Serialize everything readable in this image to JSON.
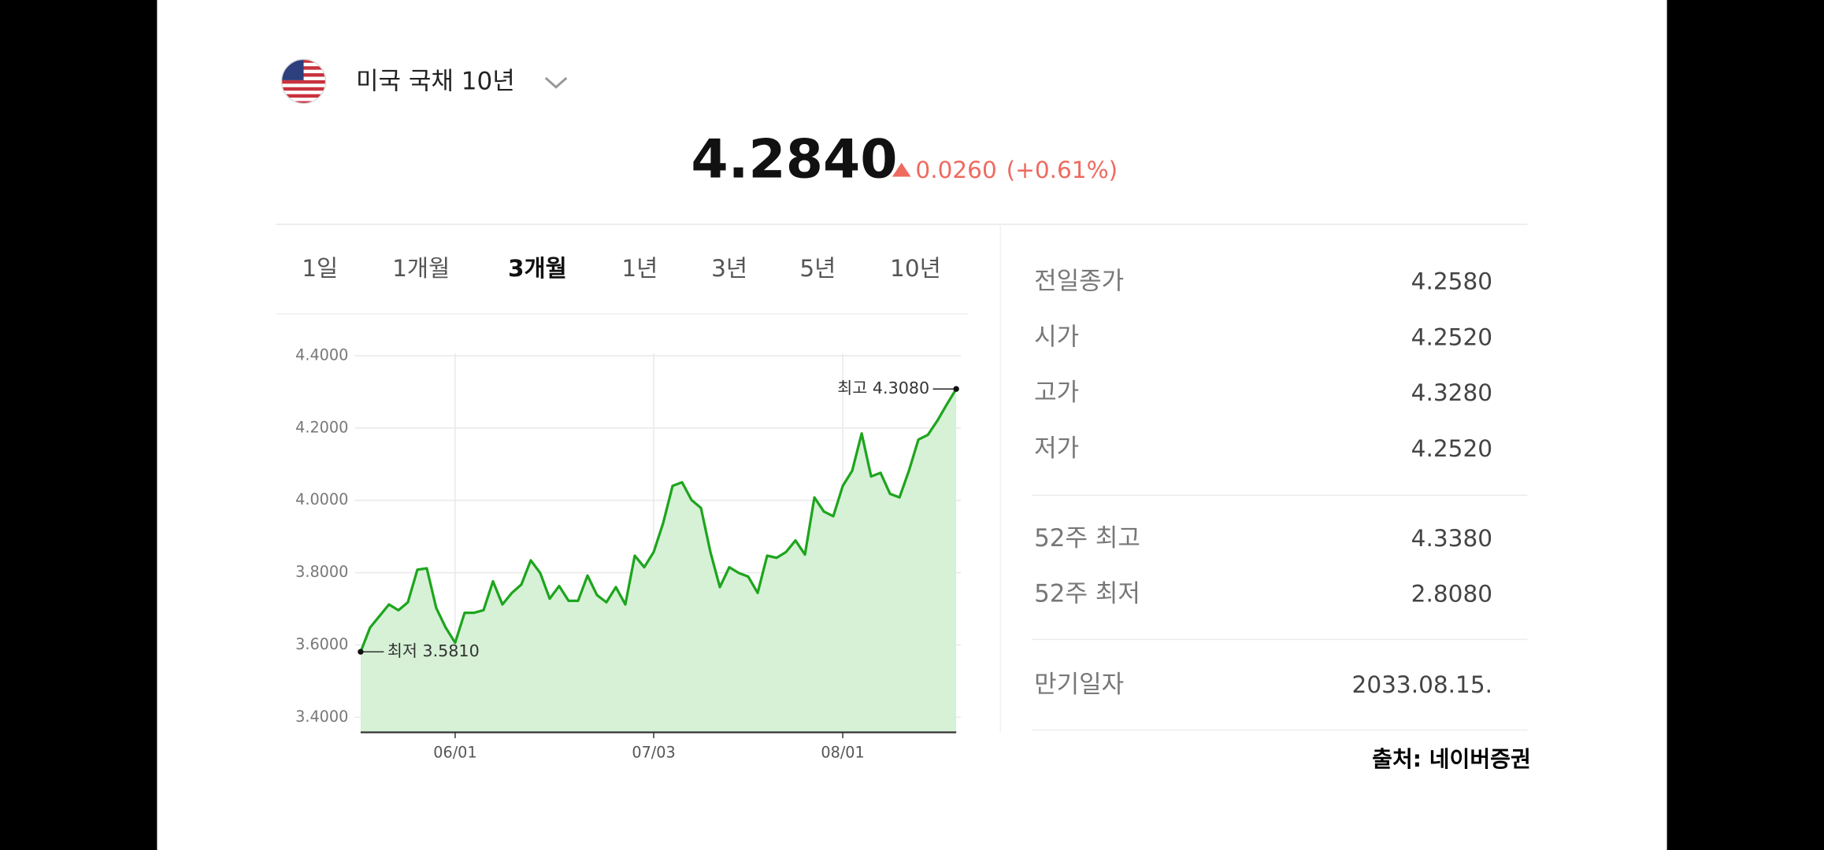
{
  "header": {
    "title": "미국 국채 10년",
    "price": "4.2840",
    "change": "0.0260",
    "change_percent": "(+0.61%)"
  },
  "tabs": {
    "items": [
      "1일",
      "1개월",
      "3개월",
      "1년",
      "3년",
      "5년",
      "10년"
    ],
    "active": "3개월"
  },
  "chart_data": {
    "type": "line",
    "color": "#1ea51e",
    "fill_color": "#d6f1d6",
    "grid": true,
    "categories": [
      null,
      null,
      null,
      null,
      null,
      null,
      null,
      null,
      null,
      null,
      "06/01",
      null,
      null,
      null,
      null,
      null,
      null,
      null,
      null,
      null,
      null,
      null,
      null,
      null,
      null,
      null,
      null,
      null,
      null,
      null,
      null,
      "07/03",
      null,
      null,
      null,
      null,
      null,
      null,
      null,
      null,
      null,
      null,
      null,
      null,
      null,
      null,
      null,
      null,
      null,
      null,
      null,
      "08/01",
      null,
      null,
      null,
      null,
      null,
      null,
      null,
      null,
      null,
      null,
      null,
      null
    ],
    "values": [
      3.581,
      3.648,
      3.68,
      3.712,
      3.696,
      3.718,
      3.808,
      3.812,
      3.702,
      3.648,
      3.606,
      3.689,
      3.689,
      3.696,
      3.776,
      3.712,
      3.744,
      3.767,
      3.834,
      3.799,
      3.728,
      3.763,
      3.722,
      3.722,
      3.792,
      3.738,
      3.718,
      3.76,
      3.712,
      3.847,
      3.815,
      3.857,
      3.937,
      4.04,
      4.05,
      4.001,
      3.979,
      3.857,
      3.76,
      3.815,
      3.799,
      3.789,
      3.744,
      3.847,
      3.841,
      3.857,
      3.889,
      3.85,
      4.008,
      3.969,
      3.956,
      4.04,
      4.082,
      4.185,
      4.066,
      4.076,
      4.018,
      4.008,
      4.082,
      4.168,
      4.181,
      4.22,
      4.265,
      4.308
    ],
    "ylim": [
      3.38,
      4.43
    ],
    "yticks": [
      {
        "value": 3.4,
        "label": "3.4000"
      },
      {
        "value": 3.6,
        "label": "3.6000"
      },
      {
        "value": 3.8,
        "label": "3.8000"
      },
      {
        "value": 4.0,
        "label": "4.0000"
      },
      {
        "value": 4.2,
        "label": "4.2000"
      },
      {
        "value": 4.4,
        "label": "4.4000"
      }
    ],
    "min_label": "최저 3.5810",
    "max_label": "최고 4.3080"
  },
  "stats": {
    "group1": [
      {
        "label": "전일종가",
        "value": "4.2580"
      },
      {
        "label": "시가",
        "value": "4.2520"
      },
      {
        "label": "고가",
        "value": "4.3280"
      },
      {
        "label": "저가",
        "value": "4.2520"
      }
    ],
    "group2": [
      {
        "label": "52주 최고",
        "value": "4.3380"
      },
      {
        "label": "52주 최저",
        "value": "2.8080"
      }
    ],
    "group3": [
      {
        "label": "만기일자",
        "value": "2033.08.15."
      }
    ]
  },
  "source": "출처: 네이버증권"
}
